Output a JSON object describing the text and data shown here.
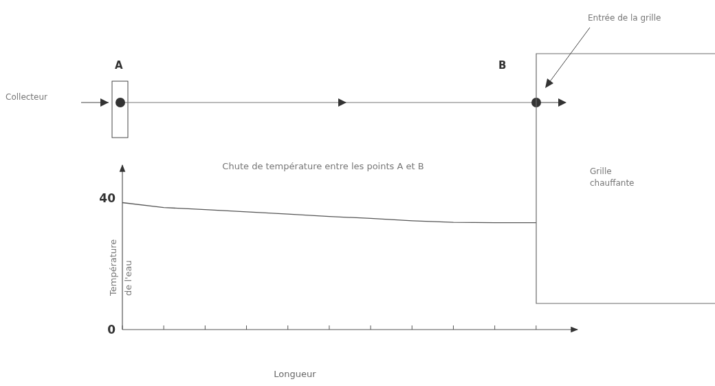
{
  "chart_data": {
    "type": "line",
    "xlabel": "Longueur",
    "ylabel": "Température de l'eau",
    "categories": [
      null,
      null,
      null,
      null,
      null,
      null,
      null,
      null,
      null,
      null,
      null
    ],
    "series": [
      {
        "color": "#555555",
        "values": [
          38.6,
          37.1,
          36.5,
          35.8,
          35.1,
          34.4,
          33.8,
          33.1,
          32.6,
          32.5,
          32.5
        ]
      }
    ],
    "ylim": [
      0,
      50
    ],
    "yticks": [
      0,
      40
    ],
    "tick_labels": "y",
    "grid": false,
    "marker": "none",
    "line_style": "solid",
    "annotations": [
      "A",
      "B",
      "Collecteur",
      "Entrée de la grille",
      "Chute de température entre les points A et B",
      "Grille chauffante"
    ]
  }
}
